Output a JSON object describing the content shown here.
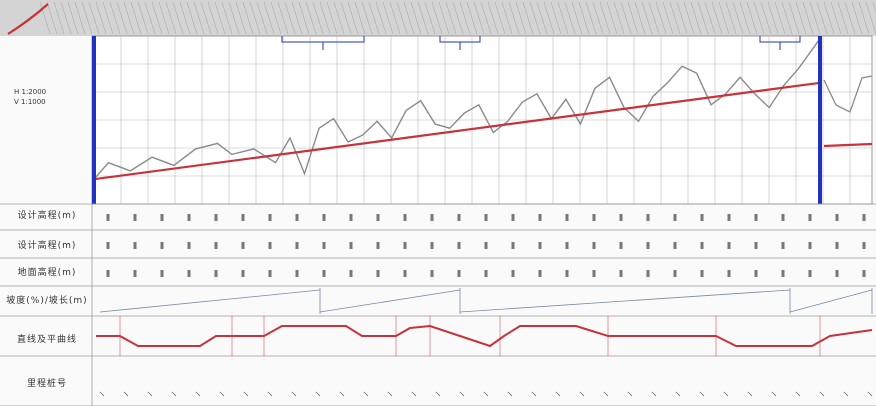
{
  "colors": {
    "ground_line": "#8a8a8a",
    "design_line": "#c8323a",
    "station_bar": "#2233bb",
    "grid": "#b8b8b8",
    "header_band": "#cfcfcf"
  },
  "scale_note": {
    "h_scale": "H 1:2000",
    "v_scale": "V 1:1000"
  },
  "rows": [
    {
      "label": "设计高程(m)"
    },
    {
      "label": "设计高程(m)"
    },
    {
      "label": "地面高程(m)"
    },
    {
      "label": "坡度(%)/坡长(m)"
    },
    {
      "label": "直线及平曲线"
    },
    {
      "label": "里程桩号"
    }
  ],
  "profile": {
    "ground_profile": [
      [
        0.0,
        0.18
      ],
      [
        0.02,
        0.3
      ],
      [
        0.05,
        0.24
      ],
      [
        0.08,
        0.34
      ],
      [
        0.11,
        0.28
      ],
      [
        0.14,
        0.4
      ],
      [
        0.17,
        0.44
      ],
      [
        0.19,
        0.36
      ],
      [
        0.22,
        0.4
      ],
      [
        0.25,
        0.3
      ],
      [
        0.27,
        0.48
      ],
      [
        0.29,
        0.22
      ],
      [
        0.31,
        0.55
      ],
      [
        0.33,
        0.62
      ],
      [
        0.35,
        0.45
      ],
      [
        0.37,
        0.5
      ],
      [
        0.39,
        0.6
      ],
      [
        0.41,
        0.48
      ],
      [
        0.43,
        0.68
      ],
      [
        0.45,
        0.75
      ],
      [
        0.47,
        0.58
      ],
      [
        0.49,
        0.55
      ],
      [
        0.51,
        0.66
      ],
      [
        0.53,
        0.72
      ],
      [
        0.55,
        0.52
      ],
      [
        0.57,
        0.6
      ],
      [
        0.59,
        0.74
      ],
      [
        0.61,
        0.8
      ],
      [
        0.63,
        0.62
      ],
      [
        0.65,
        0.76
      ],
      [
        0.67,
        0.58
      ],
      [
        0.69,
        0.84
      ],
      [
        0.71,
        0.92
      ],
      [
        0.73,
        0.7
      ],
      [
        0.75,
        0.6
      ],
      [
        0.77,
        0.78
      ],
      [
        0.79,
        0.88
      ],
      [
        0.81,
        1.0
      ],
      [
        0.83,
        0.95
      ],
      [
        0.85,
        0.72
      ],
      [
        0.87,
        0.8
      ],
      [
        0.89,
        0.92
      ],
      [
        0.91,
        0.8
      ],
      [
        0.93,
        0.7
      ],
      [
        0.95,
        0.86
      ],
      [
        0.97,
        0.98
      ],
      [
        1.0,
        1.2
      ]
    ],
    "design_grade": [
      [
        0.0,
        0.18
      ],
      [
        1.0,
        0.88
      ]
    ]
  },
  "curve_row": {
    "segments": [
      "直线",
      "平曲线",
      "直线",
      "平曲线",
      "直线",
      "平曲线",
      "直线",
      "平曲线",
      "直线"
    ]
  }
}
